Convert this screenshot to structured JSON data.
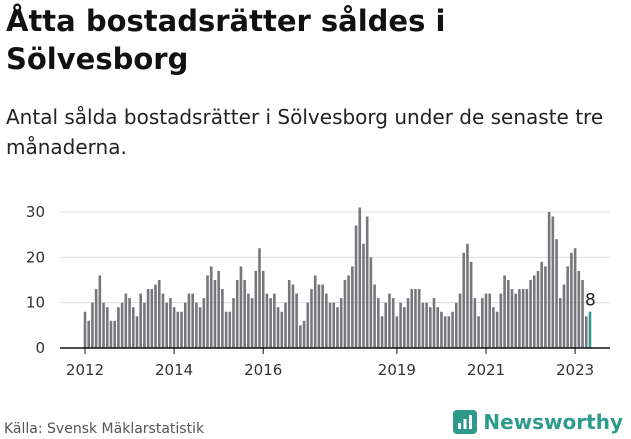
{
  "title": "Åtta bostadsrätter såldes i Sölvesborg",
  "subtitle": "Antal sålda bostadsrätter i Sölvesborg under de senaste tre månaderna.",
  "source": "Källa: Svensk Mäklarstatistik",
  "brand": {
    "name": "Newsworthy",
    "icon": "newsworthy-logo-icon",
    "color": "#2d9a8c"
  },
  "colors": {
    "bar": "#77767a",
    "highlight": "#2d9a8c",
    "grid": "#dddddd"
  },
  "chart_data": {
    "type": "bar",
    "title": "",
    "xlabel": "",
    "ylabel": "",
    "ylim": [
      0,
      30
    ],
    "yticks": [
      0,
      10,
      20,
      30
    ],
    "x_start": "2012-01",
    "x_ticks": [
      {
        "label": "2012",
        "index": 0
      },
      {
        "label": "2014",
        "index": 24
      },
      {
        "label": "2016",
        "index": 48
      },
      {
        "label": "2019",
        "index": 84
      },
      {
        "label": "2021",
        "index": 108
      },
      {
        "label": "2023",
        "index": 132
      }
    ],
    "values": [
      8,
      6,
      10,
      13,
      16,
      10,
      9,
      6,
      6,
      9,
      10,
      12,
      11,
      9,
      7,
      12,
      10,
      13,
      13,
      14,
      15,
      12,
      10,
      11,
      9,
      8,
      8,
      10,
      12,
      12,
      10,
      9,
      11,
      16,
      18,
      15,
      17,
      13,
      8,
      8,
      11,
      15,
      18,
      15,
      12,
      11,
      17,
      22,
      17,
      12,
      11,
      12,
      9,
      8,
      10,
      15,
      14,
      12,
      5,
      6,
      10,
      13,
      16,
      14,
      14,
      12,
      10,
      10,
      9,
      11,
      15,
      16,
      18,
      27,
      31,
      23,
      29,
      20,
      14,
      11,
      7,
      10,
      12,
      11,
      7,
      10,
      9,
      11,
      13,
      13,
      13,
      10,
      10,
      9,
      11,
      9,
      8,
      7,
      7,
      8,
      10,
      12,
      21,
      23,
      19,
      11,
      7,
      11,
      12,
      12,
      9,
      8,
      12,
      16,
      15,
      13,
      12,
      13,
      13,
      13,
      15,
      16,
      17,
      19,
      18,
      30,
      29,
      24,
      11,
      14,
      18,
      21,
      22,
      17,
      15,
      7,
      8
    ],
    "last_label": "8",
    "grid": true,
    "legend": "none"
  }
}
